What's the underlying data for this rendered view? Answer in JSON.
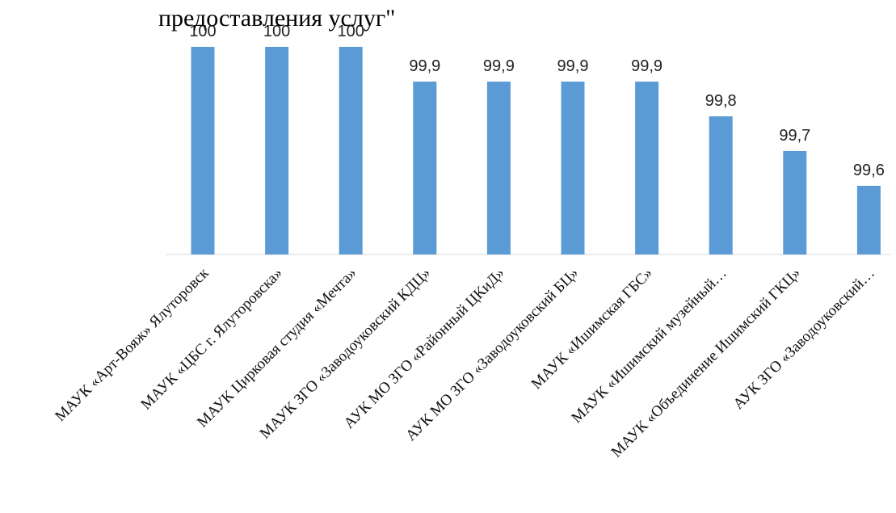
{
  "chart_data": {
    "type": "bar",
    "title": "предоставления услуг\"",
    "categories": [
      "МАУК «Арт-Вояж» Ялуторовск",
      "МАУК «ЦБС г. Ялуторовска»",
      "МАУК Цирковая студия «Мечта»",
      "МАУК ЗГО «Заводоуковский КДЦ»",
      "АУК МО ЗГО «Районный ЦКиД»",
      "АУК МО ЗГО «Заводоуковский БЦ»",
      "МАУК «Ишимская ГБС»",
      "МАУК «Ишимский музейный…",
      "МАУК «Объединение Ишимский ГКЦ»",
      "АУК ЗГО «Заводоуковский…"
    ],
    "values": [
      100,
      100,
      100,
      99.9,
      99.9,
      99.9,
      99.9,
      99.8,
      99.7,
      99.6
    ],
    "value_labels": [
      "100",
      "100",
      "100",
      "99,9",
      "99,9",
      "99,9",
      "99,9",
      "99,8",
      "99,7",
      "99,6"
    ],
    "bar_color": "#5b9bd5",
    "axis_color": "#d9d9d9",
    "grid": false,
    "legend": "none"
  }
}
